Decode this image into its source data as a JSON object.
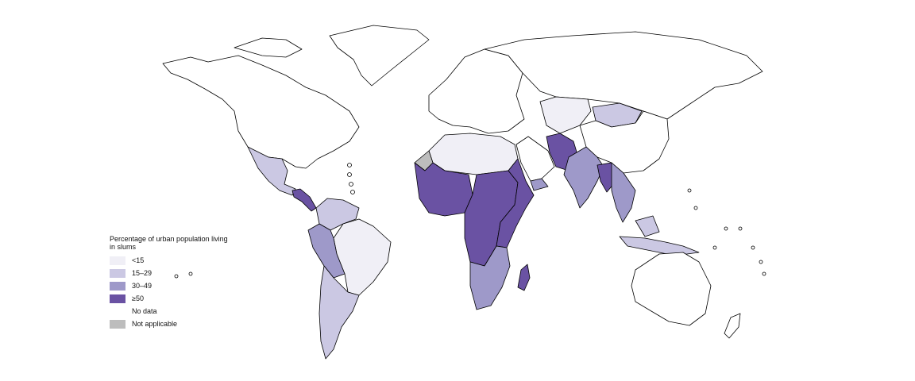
{
  "legend": {
    "title": "Percentage of urban population living in slums",
    "items": [
      {
        "label": "<15",
        "color": "#f0eff6"
      },
      {
        "label": "15–29",
        "color": "#cbc8e3"
      },
      {
        "label": "30–49",
        "color": "#9e99c9"
      },
      {
        "label": "≥50",
        "color": "#6a52a3"
      },
      {
        "label": "No data",
        "color": "#ffffff"
      },
      {
        "label": "Not applicable",
        "color": "#bdbdbd"
      }
    ]
  },
  "regions": [
    {
      "name": "north-america",
      "category": "No data"
    },
    {
      "name": "greenland",
      "category": "No data"
    },
    {
      "name": "mexico",
      "category": "15–29"
    },
    {
      "name": "central-america",
      "category": "≥50"
    },
    {
      "name": "colombia-venezuela",
      "category": "15–29"
    },
    {
      "name": "brazil",
      "category": "<15"
    },
    {
      "name": "peru-bolivia",
      "category": "30–49"
    },
    {
      "name": "southern-cone",
      "category": "15–29"
    },
    {
      "name": "europe",
      "category": "No data"
    },
    {
      "name": "north-africa",
      "category": "<15"
    },
    {
      "name": "western-sahara",
      "category": "Not applicable"
    },
    {
      "name": "west-africa",
      "category": "≥50"
    },
    {
      "name": "central-africa",
      "category": "≥50"
    },
    {
      "name": "east-africa",
      "category": "≥50"
    },
    {
      "name": "southern-africa",
      "category": "30–49"
    },
    {
      "name": "madagascar",
      "category": "≥50"
    },
    {
      "name": "arabia",
      "category": "No data"
    },
    {
      "name": "yemen",
      "category": "30–49"
    },
    {
      "name": "russia",
      "category": "No data"
    },
    {
      "name": "kazakhstan",
      "category": "<15"
    },
    {
      "name": "mongolia",
      "category": "15–29"
    },
    {
      "name": "china",
      "category": "No data"
    },
    {
      "name": "afghanistan-pakistan",
      "category": "≥50"
    },
    {
      "name": "india",
      "category": "30–49"
    },
    {
      "name": "myanmar",
      "category": "≥50"
    },
    {
      "name": "southeast-asia",
      "category": "30–49"
    },
    {
      "name": "indonesia",
      "category": "15–29"
    },
    {
      "name": "australia",
      "category": "No data"
    },
    {
      "name": "new-zealand",
      "category": "No data"
    }
  ]
}
